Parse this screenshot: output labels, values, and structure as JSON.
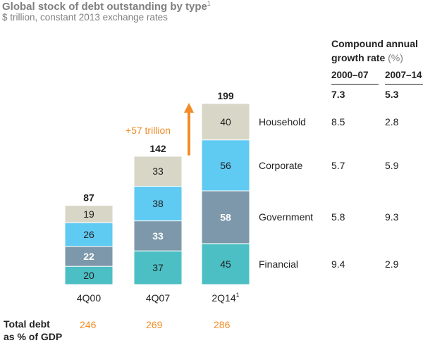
{
  "header": {
    "title": "Global stock of debt outstanding by type",
    "title_sup": "1",
    "subtitle": "$ trillion, constant 2013 exchange rates"
  },
  "cagr": {
    "title_line1": "Compound annual",
    "title_line2": "growth rate",
    "title_unit": "(%)",
    "periods": [
      "2000–07",
      "2007–14"
    ],
    "totals": [
      "7.3",
      "5.3"
    ],
    "rows": [
      {
        "segment": "Household",
        "values": [
          "8.5",
          "2.8"
        ]
      },
      {
        "segment": "Corporate",
        "values": [
          "5.7",
          "5.9"
        ]
      },
      {
        "segment": "Government",
        "values": [
          "5.8",
          "9.3"
        ]
      },
      {
        "segment": "Financial",
        "values": [
          "9.4",
          "2.9"
        ]
      }
    ]
  },
  "annotation": {
    "growth_label": "+57 trillion",
    "arrow_color": "#f28c28"
  },
  "footer": {
    "label_line1": "Total debt",
    "label_line2": "as % of GDP",
    "gdp_values": [
      "246",
      "269",
      "286"
    ],
    "gdp_color": "#f28c28"
  },
  "chart_data": {
    "type": "bar",
    "stacked": true,
    "categories": [
      "4Q00",
      "4Q07",
      "2Q14"
    ],
    "category_sups": [
      "",
      "",
      "1"
    ],
    "totals": [
      87,
      142,
      199
    ],
    "series": [
      {
        "name": "Financial",
        "values": [
          20,
          37,
          45
        ],
        "color": "#4bbfc4",
        "bold": false
      },
      {
        "name": "Government",
        "values": [
          22,
          33,
          58
        ],
        "color": "#7d98aa",
        "bold": true,
        "label_color": "#ffffff"
      },
      {
        "name": "Corporate",
        "values": [
          26,
          38,
          56
        ],
        "color": "#5fcaf2",
        "bold": false
      },
      {
        "name": "Household",
        "values": [
          19,
          33,
          40
        ],
        "color": "#d8d6c6",
        "bold": false
      }
    ],
    "ylim": [
      0,
      199
    ],
    "xlabel": "",
    "ylabel": ""
  }
}
